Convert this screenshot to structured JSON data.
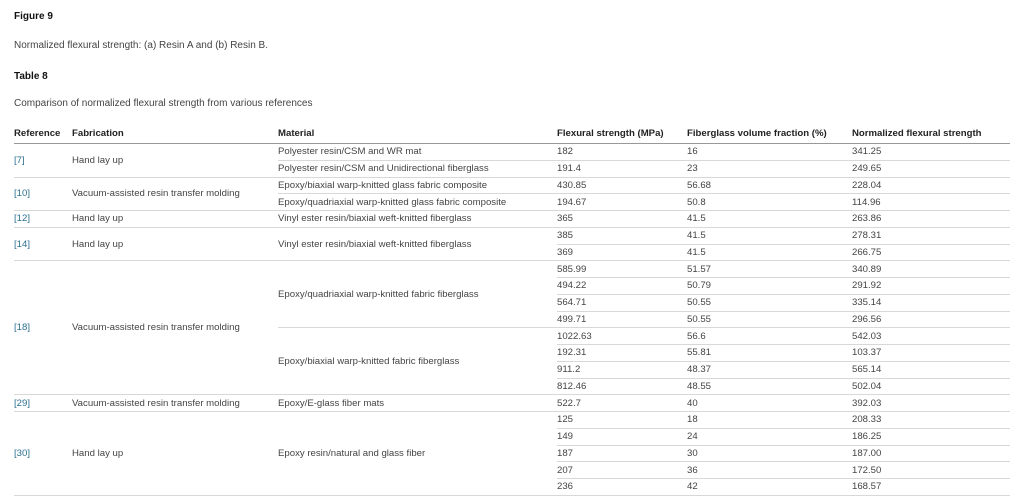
{
  "figure": {
    "title": "Figure 9",
    "caption": "Normalized flexural strength: (a) Resin A and (b) Resin B."
  },
  "table": {
    "title": "Table 8",
    "caption": "Comparison of normalized flexural strength from various references",
    "headers": [
      "Reference",
      "Fabrication",
      "Material",
      "Flexural strength (MPa)",
      "Fiberglass volume fraction (%)",
      "Normalized flexural strength"
    ],
    "groups": [
      {
        "ref": "[7]",
        "fabrication": "Hand lay up",
        "materials": [
          {
            "name": "Polyester resin/CSM and WR mat",
            "rows": [
              [
                "182",
                "16",
                "341.25"
              ]
            ]
          },
          {
            "name": "Polyester resin/CSM and Unidirectional fiberglass",
            "rows": [
              [
                "191.4",
                "23",
                "249.65"
              ]
            ]
          }
        ]
      },
      {
        "ref": "[10]",
        "fabrication": "Vacuum-assisted resin transfer molding",
        "materials": [
          {
            "name": "Epoxy/biaxial warp-knitted glass fabric composite",
            "rows": [
              [
                "430.85",
                "56.68",
                "228.04"
              ]
            ]
          },
          {
            "name": "Epoxy/quadriaxial warp-knitted glass fabric composite",
            "rows": [
              [
                "194.67",
                "50.8",
                "114.96"
              ]
            ]
          }
        ]
      },
      {
        "ref": "[12]",
        "fabrication": "Hand lay up",
        "materials": [
          {
            "name": "Vinyl ester resin/biaxial weft-knitted fiberglass",
            "rows": [
              [
                "365",
                "41.5",
                "263.86"
              ]
            ]
          }
        ]
      },
      {
        "ref": "[14]",
        "fabrication": "Hand lay up",
        "materials": [
          {
            "name": "Vinyl ester resin/biaxial weft-knitted fiberglass",
            "rows": [
              [
                "385",
                "41.5",
                "278.31"
              ],
              [
                "369",
                "41.5",
                "266.75"
              ]
            ]
          }
        ]
      },
      {
        "ref": "[18]",
        "fabrication": "Vacuum-assisted resin transfer molding",
        "materials": [
          {
            "name": "Epoxy/quadriaxial warp-knitted fabric fiberglass",
            "rows": [
              [
                "585.99",
                "51.57",
                "340.89"
              ],
              [
                "494.22",
                "50.79",
                "291.92"
              ],
              [
                "564.71",
                "50.55",
                "335.14"
              ],
              [
                "499.71",
                "50.55",
                "296.56"
              ]
            ]
          },
          {
            "name": "Epoxy/biaxial warp-knitted fabric fiberglass",
            "rows": [
              [
                "1022.63",
                "56.6",
                "542.03"
              ],
              [
                "192.31",
                "55.81",
                "103.37"
              ],
              [
                "911.2",
                "48.37",
                "565.14"
              ],
              [
                "812.46",
                "48.55",
                "502.04"
              ]
            ]
          }
        ]
      },
      {
        "ref": "[29]",
        "fabrication": "Vacuum-assisted resin transfer molding",
        "materials": [
          {
            "name": "Epoxy/E-glass fiber mats",
            "rows": [
              [
                "522.7",
                "40",
                "392.03"
              ]
            ]
          }
        ]
      },
      {
        "ref": "[30]",
        "fabrication": "Hand lay up",
        "materials": [
          {
            "name": "Epoxy resin/natural and glass fiber",
            "rows": [
              [
                "125",
                "18",
                "208.33"
              ],
              [
                "149",
                "24",
                "186.25"
              ],
              [
                "187",
                "30",
                "187.00"
              ],
              [
                "207",
                "36",
                "172.50"
              ],
              [
                "236",
                "42",
                "168.57"
              ]
            ]
          }
        ]
      }
    ]
  },
  "colors": {
    "link": "#2a6f8f",
    "text": "#444444"
  }
}
